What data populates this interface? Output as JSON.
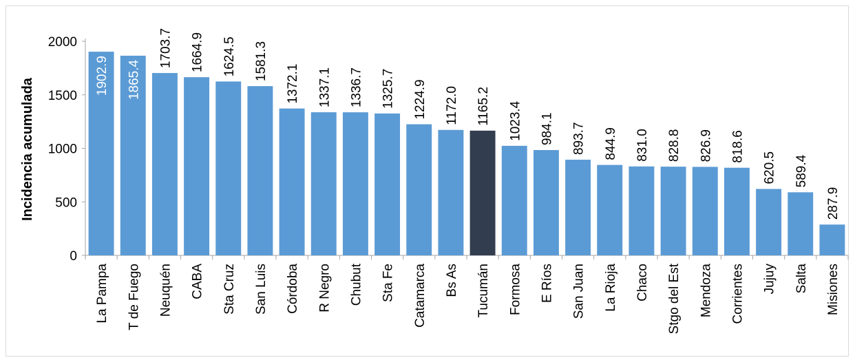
{
  "chart_data": {
    "type": "bar",
    "ylabel": "Incidencia acumulada",
    "xlabel": "",
    "title": "",
    "ylim": [
      0,
      2000
    ],
    "yticks": [
      0,
      500,
      1000,
      1500,
      2000
    ],
    "grid": false,
    "legend": "none",
    "categories": [
      "La Pampa",
      "T de Fuego",
      "Neuquén",
      "CABA",
      "Sta Cruz",
      "San Luis",
      "Córdoba",
      "R Negro",
      "Chubut",
      "Sta Fe",
      "Catamarca",
      "Bs As",
      "Tucumán",
      "Formosa",
      "E Ríos",
      "San Juan",
      "La Rioja",
      "Chaco",
      "Stgo del Est",
      "Mendoza",
      "Corrientes",
      "Jujuy",
      "Salta",
      "Misiones"
    ],
    "values": [
      1902.9,
      1865.4,
      1703.7,
      1664.9,
      1624.5,
      1581.3,
      1372.1,
      1337.1,
      1336.7,
      1325.7,
      1224.9,
      1172.0,
      1165.2,
      1023.4,
      984.1,
      893.7,
      844.9,
      831.0,
      828.8,
      826.9,
      818.6,
      620.5,
      589.4,
      287.9
    ],
    "value_labels": [
      "1902.9",
      "1865.4",
      "1703.7",
      "1664.9",
      "1624.5",
      "1581.3",
      "1372.1",
      "1337.1",
      "1336.7",
      "1325.7",
      "1224.9",
      "1172.0",
      "1165.2",
      "1023.4",
      "984.1",
      "893.7",
      "844.9",
      "831.0",
      "828.8",
      "826.9",
      "818.6",
      "620.5",
      "589.4",
      "287.9"
    ],
    "colors": {
      "bar": "#5b9bd5",
      "highlight": "#323e4f",
      "axis": "#a6a6a6"
    },
    "highlight_category": "Tucumán",
    "inside_label_categories": [
      "La Pampa",
      "T de Fuego"
    ]
  }
}
